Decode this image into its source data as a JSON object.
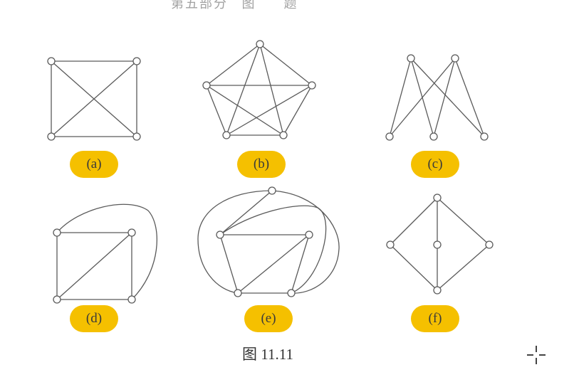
{
  "top_fragment": "第五部分   图      题",
  "caption": "图 11.11",
  "colors": {
    "edge": "#5a5a5a",
    "vertex_fill": "#ffffff",
    "badge": "#f5c000"
  },
  "graphs": [
    {
      "id": "a",
      "label": "(a)"
    },
    {
      "id": "b",
      "label": "(b)"
    },
    {
      "id": "c",
      "label": "(c)"
    },
    {
      "id": "d",
      "label": "(d)"
    },
    {
      "id": "e",
      "label": "(e)"
    },
    {
      "id": "f",
      "label": "(f)"
    }
  ],
  "cursor_icon": "move-cursor-icon"
}
